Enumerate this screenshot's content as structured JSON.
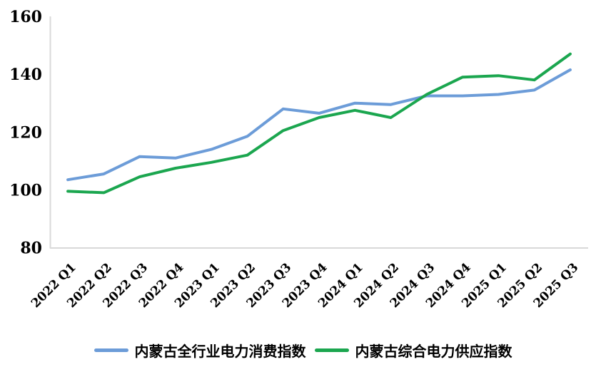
{
  "chart_data": {
    "type": "line",
    "title": "",
    "categories": [
      "2022 Q1",
      "2022 Q2",
      "2022 Q3",
      "2022 Q4",
      "2023 Q1",
      "2023 Q2",
      "2023 Q3",
      "2023 Q4",
      "2024 Q1",
      "2024 Q2",
      "2024 Q3",
      "2024 Q4",
      "2025 Q1",
      "2025 Q2",
      "2025 Q3"
    ],
    "series": [
      {
        "name": "内蒙古全行业电力消费指数",
        "color": "#6C9CD8",
        "values": [
          103.5,
          105.5,
          111.5,
          111,
          114,
          118.5,
          128,
          126.5,
          130,
          129.5,
          132.5,
          132.5,
          133,
          134.5,
          141.5
        ]
      },
      {
        "name": "内蒙古综合电力供应指数",
        "color": "#1BA64F",
        "values": [
          99.5,
          99,
          104.5,
          107.5,
          109.5,
          112,
          120.5,
          125,
          127.5,
          125,
          133,
          139,
          139.5,
          138,
          147
        ]
      }
    ],
    "ylim": [
      80,
      160
    ],
    "y_ticks": [
      80,
      100,
      120,
      140,
      160
    ],
    "grid": false,
    "legend_position": "bottom",
    "axis_color": "#D9D9D9",
    "tick_label_color": "#000000",
    "line_width": 4
  }
}
